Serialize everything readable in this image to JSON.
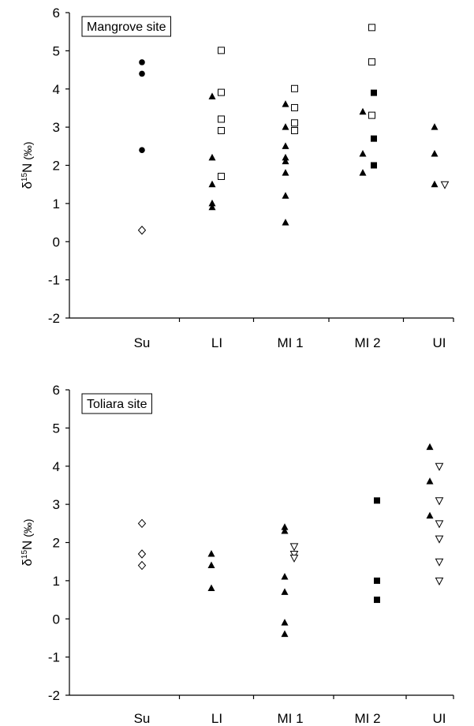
{
  "chart_data": [
    {
      "type": "scatter",
      "title": "Mangrove site",
      "ylabel": "δ15N (‰)",
      "ylabel_parts": {
        "delta": "δ",
        "sup": "15",
        "letter": "N",
        "unit": " (‰)"
      },
      "ylim": [
        -2,
        6
      ],
      "yticks": [
        "-2",
        "-1",
        "0",
        "1",
        "2",
        "3",
        "4",
        "5",
        "6"
      ],
      "categories": [
        "Su",
        "LI",
        "MI 1",
        "MI 2",
        "UI"
      ],
      "grid": false,
      "series": [
        {
          "marker": "circle-filled",
          "points": [
            {
              "cat": "Su",
              "y": 4.7
            },
            {
              "cat": "Su",
              "y": 4.4
            },
            {
              "cat": "Su",
              "y": 2.4
            }
          ]
        },
        {
          "marker": "diamond-open",
          "points": [
            {
              "cat": "Su",
              "y": 0.3
            }
          ]
        },
        {
          "marker": "triangle-filled",
          "points": [
            {
              "cat": "LI",
              "y": 3.8
            },
            {
              "cat": "LI",
              "y": 2.2
            },
            {
              "cat": "LI",
              "y": 1.5
            },
            {
              "cat": "LI",
              "y": 1.0
            },
            {
              "cat": "LI",
              "y": 0.9
            },
            {
              "cat": "MI 1",
              "y": 3.6
            },
            {
              "cat": "MI 1",
              "y": 3.0
            },
            {
              "cat": "MI 1",
              "y": 2.5
            },
            {
              "cat": "MI 1",
              "y": 2.2
            },
            {
              "cat": "MI 1",
              "y": 2.1
            },
            {
              "cat": "MI 1",
              "y": 1.8
            },
            {
              "cat": "MI 1",
              "y": 1.2
            },
            {
              "cat": "MI 1",
              "y": 0.5
            },
            {
              "cat": "MI 2",
              "y": 3.4
            },
            {
              "cat": "MI 2",
              "y": 2.3
            },
            {
              "cat": "MI 2",
              "y": 1.8
            },
            {
              "cat": "UI",
              "y": 3.0
            },
            {
              "cat": "UI",
              "y": 2.3
            },
            {
              "cat": "UI",
              "y": 1.5
            }
          ]
        },
        {
          "marker": "square-open",
          "points": [
            {
              "cat": "LI",
              "y": 5.0
            },
            {
              "cat": "LI",
              "y": 3.9
            },
            {
              "cat": "LI",
              "y": 3.2
            },
            {
              "cat": "LI",
              "y": 2.9
            },
            {
              "cat": "LI",
              "y": 1.7
            },
            {
              "cat": "MI 1",
              "y": 4.0
            },
            {
              "cat": "MI 1",
              "y": 3.5
            },
            {
              "cat": "MI 1",
              "y": 3.1
            },
            {
              "cat": "MI 1",
              "y": 2.9
            },
            {
              "cat": "MI 2",
              "y": 5.6
            },
            {
              "cat": "MI 2",
              "y": 4.7
            },
            {
              "cat": "MI 2",
              "y": 3.3
            }
          ]
        },
        {
          "marker": "square-filled",
          "points": [
            {
              "cat": "MI 2",
              "y": 3.9
            },
            {
              "cat": "MI 2",
              "y": 2.7
            },
            {
              "cat": "MI 2",
              "y": 2.0
            }
          ]
        },
        {
          "marker": "triangle-down-open",
          "points": [
            {
              "cat": "UI",
              "y": 1.5
            }
          ]
        }
      ]
    },
    {
      "type": "scatter",
      "title": "Toliara site",
      "ylabel": "δ15N (‰)",
      "ylabel_parts": {
        "delta": "δ",
        "sup": "15",
        "letter": "N",
        "unit": " (‰)"
      },
      "ylim": [
        -2,
        6
      ],
      "yticks": [
        "-2",
        "-1",
        "0",
        "1",
        "2",
        "3",
        "4",
        "5",
        "6"
      ],
      "categories": [
        "Su",
        "LI",
        "MI 1",
        "MI 2",
        "UI"
      ],
      "grid": false,
      "series": [
        {
          "marker": "diamond-open",
          "points": [
            {
              "cat": "Su",
              "y": 2.5
            },
            {
              "cat": "Su",
              "y": 1.7
            },
            {
              "cat": "Su",
              "y": 1.4
            }
          ]
        },
        {
          "marker": "triangle-filled",
          "points": [
            {
              "cat": "LI",
              "y": 1.7
            },
            {
              "cat": "LI",
              "y": 1.4
            },
            {
              "cat": "LI",
              "y": 0.8
            },
            {
              "cat": "MI 1",
              "y": 2.4
            },
            {
              "cat": "MI 1",
              "y": 2.3
            },
            {
              "cat": "MI 1",
              "y": 1.1
            },
            {
              "cat": "MI 1",
              "y": 0.7
            },
            {
              "cat": "MI 1",
              "y": -0.1
            },
            {
              "cat": "MI 1",
              "y": -0.4
            },
            {
              "cat": "UI",
              "y": 4.5
            },
            {
              "cat": "UI",
              "y": 3.6
            },
            {
              "cat": "UI",
              "y": 2.7
            }
          ]
        },
        {
          "marker": "triangle-down-open",
          "points": [
            {
              "cat": "MI 1",
              "y": 1.9
            },
            {
              "cat": "MI 1",
              "y": 1.7
            },
            {
              "cat": "MI 1",
              "y": 1.6
            },
            {
              "cat": "UI",
              "y": 4.0
            },
            {
              "cat": "UI",
              "y": 3.1
            },
            {
              "cat": "UI",
              "y": 2.5
            },
            {
              "cat": "UI",
              "y": 2.1
            },
            {
              "cat": "UI",
              "y": 1.5
            },
            {
              "cat": "UI",
              "y": 1.0
            }
          ]
        },
        {
          "marker": "square-filled",
          "points": [
            {
              "cat": "MI 2",
              "y": 3.1
            },
            {
              "cat": "MI 2",
              "y": 1.0
            },
            {
              "cat": "MI 2",
              "y": 0.5
            }
          ]
        }
      ]
    }
  ]
}
